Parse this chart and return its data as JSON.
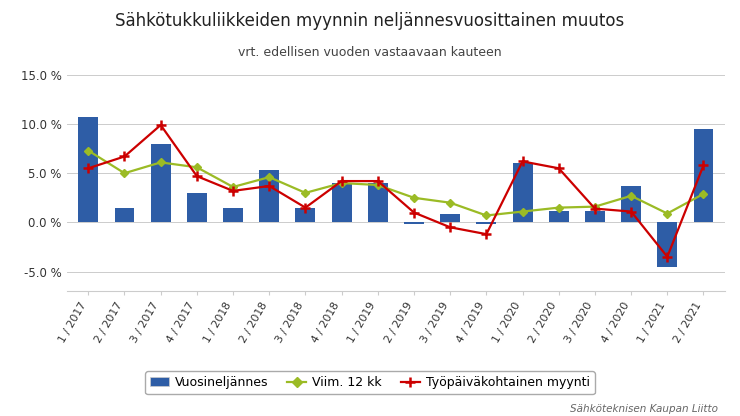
{
  "title": "Sähkötukkuliikkeiden myynnin neljännesvuosittainen muutos",
  "subtitle": "vrt. edellisen vuoden vastaavaan kauteen",
  "categories": [
    "1 / 2017",
    "2 / 2017",
    "3 / 2017",
    "4 / 2017",
    "1 / 2018",
    "2 / 2018",
    "3 / 2018",
    "4 / 2018",
    "1 / 2019",
    "2 / 2019",
    "3 / 2019",
    "4 / 2019",
    "1 / 2020",
    "2 / 2020",
    "3 / 2020",
    "4 / 2020",
    "1 / 2021",
    "2 / 2021"
  ],
  "bar_values": [
    10.7,
    1.5,
    8.0,
    3.0,
    1.5,
    5.3,
    1.5,
    4.0,
    4.0,
    -0.2,
    0.9,
    -0.2,
    6.0,
    1.2,
    1.2,
    3.7,
    -4.5,
    9.5
  ],
  "line1_values": [
    7.3,
    5.0,
    6.1,
    5.6,
    3.6,
    4.6,
    3.0,
    4.0,
    3.8,
    2.5,
    2.0,
    0.7,
    1.1,
    1.5,
    1.6,
    2.7,
    0.9,
    2.9
  ],
  "line2_values": [
    5.5,
    6.7,
    9.9,
    4.7,
    3.2,
    3.7,
    1.5,
    4.2,
    4.2,
    1.0,
    -0.5,
    -1.2,
    6.2,
    5.5,
    1.4,
    1.1,
    -3.5,
    5.8
  ],
  "bar_color": "#2E5DA6",
  "line1_color": "#9BBB25",
  "line2_color": "#CC0000",
  "ylim_min": -7.0,
  "ylim_max": 15.0,
  "yticks": [
    -5.0,
    0.0,
    5.0,
    10.0,
    15.0
  ],
  "ytick_labels": [
    "-5.0 %",
    "0.0 %",
    "5.0 %",
    "10.0 %",
    "15.0 %"
  ],
  "legend_labels": [
    "Vuosineljännes",
    "Viim. 12 kk",
    "Työpäiväkohtainen myynti"
  ],
  "footer": "Sähköteknisen Kaupan Liitto",
  "background_color": "#ffffff",
  "grid_color": "#cccccc",
  "title_fontsize": 12,
  "subtitle_fontsize": 9
}
